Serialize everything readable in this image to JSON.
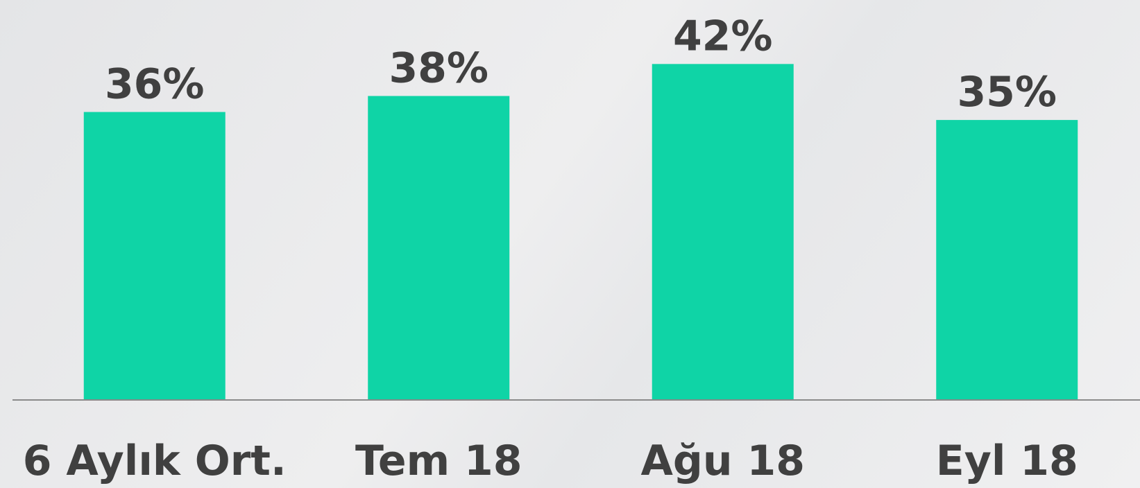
{
  "chart_data": {
    "type": "bar",
    "categories": [
      "6 Aylık Ort.",
      "Tem 18",
      "Ağu 18",
      "Eyl 18"
    ],
    "values": [
      36,
      38,
      42,
      35
    ],
    "value_labels": [
      "36%",
      "38%",
      "42%",
      "35%"
    ],
    "color": "#0fd4a6",
    "ylim": [
      0,
      50
    ]
  }
}
